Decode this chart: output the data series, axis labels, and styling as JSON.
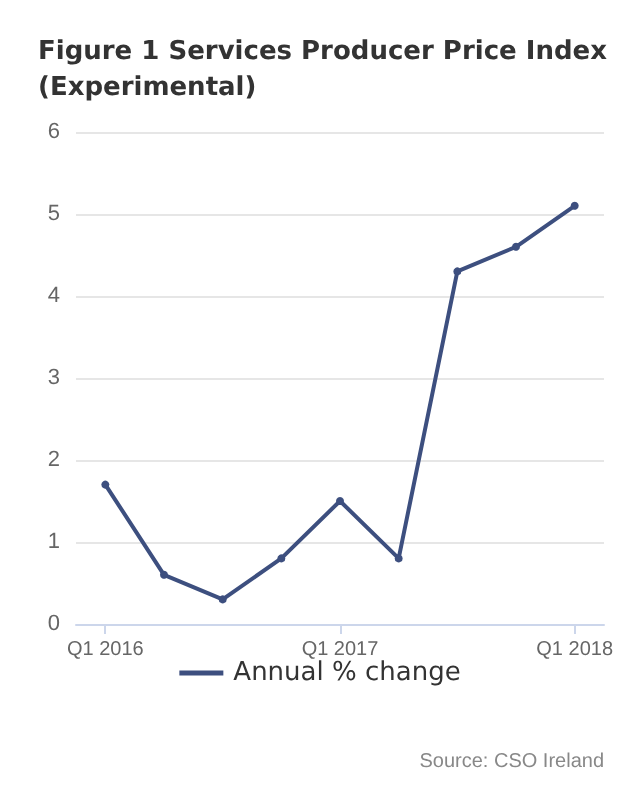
{
  "chart_data": {
    "type": "line",
    "title": "Figure 1 Services Producer Price Index (Experimental)",
    "categories": [
      "Q1 2016",
      null,
      null,
      null,
      "Q1 2017",
      null,
      null,
      null,
      "Q1 2018"
    ],
    "series": [
      {
        "name": "Annual % change",
        "color": "#3d4f7f",
        "values": [
          1.7,
          0.6,
          0.3,
          0.8,
          1.5,
          0.8,
          4.3,
          4.6,
          5.1
        ]
      }
    ],
    "ylim": [
      0,
      6
    ],
    "yticks": [
      0,
      1,
      2,
      3,
      4,
      5,
      6
    ],
    "grid": "y",
    "legend": "bottom",
    "marker": "circle",
    "line_style": "solid",
    "annotations": [
      "Source: CSO Ireland"
    ]
  }
}
